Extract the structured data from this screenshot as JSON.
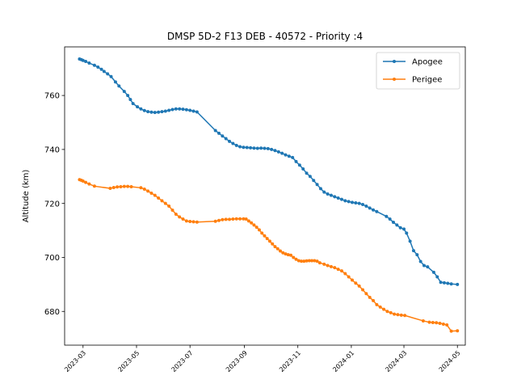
{
  "chart_data": {
    "type": "line",
    "title": "DMSP 5D-2 F13 DEB - 40572 - Priority :4",
    "xlabel": "",
    "ylabel": "Altitude (km)",
    "xlim": [
      "2023-02-08",
      "2024-05-10"
    ],
    "ylim": [
      667.5,
      778
    ],
    "x_ticks": [
      "2023-03",
      "2023-05",
      "2023-07",
      "2023-09",
      "2023-11",
      "2024-01",
      "2024-03",
      "2024-05"
    ],
    "x_tick_dates": [
      "2023-03-01",
      "2023-05-01",
      "2023-07-01",
      "2023-09-01",
      "2023-11-01",
      "2024-01-01",
      "2024-03-01",
      "2024-05-01"
    ],
    "y_ticks": [
      680,
      700,
      720,
      740,
      760
    ],
    "grid": false,
    "legend_position": "top-right",
    "series": [
      {
        "name": "Apogee",
        "color": "#1f77b4",
        "marker": "circle",
        "x": [
          "2023-02-25",
          "2023-02-27",
          "2023-03-01",
          "2023-03-04",
          "2023-03-08",
          "2023-03-14",
          "2023-03-18",
          "2023-03-22",
          "2023-03-25",
          "2023-03-29",
          "2023-04-02",
          "2023-04-07",
          "2023-04-11",
          "2023-04-17",
          "2023-04-21",
          "2023-04-24",
          "2023-04-27",
          "2023-05-02",
          "2023-05-06",
          "2023-05-10",
          "2023-05-14",
          "2023-05-18",
          "2023-05-22",
          "2023-05-26",
          "2023-05-30",
          "2023-06-03",
          "2023-06-07",
          "2023-06-11",
          "2023-06-15",
          "2023-06-19",
          "2023-06-23",
          "2023-06-27",
          "2023-07-01",
          "2023-07-05",
          "2023-07-09",
          "2023-07-30",
          "2023-08-03",
          "2023-08-07",
          "2023-08-11",
          "2023-08-15",
          "2023-08-19",
          "2023-08-23",
          "2023-08-27",
          "2023-08-31",
          "2023-09-04",
          "2023-09-08",
          "2023-09-12",
          "2023-09-16",
          "2023-09-20",
          "2023-09-24",
          "2023-09-28",
          "2023-10-02",
          "2023-10-06",
          "2023-10-10",
          "2023-10-14",
          "2023-10-18",
          "2023-10-22",
          "2023-10-26",
          "2023-10-30",
          "2023-11-03",
          "2023-11-07",
          "2023-11-11",
          "2023-11-15",
          "2023-11-19",
          "2023-11-23",
          "2023-11-27",
          "2023-12-01",
          "2023-12-05",
          "2023-12-09",
          "2023-12-13",
          "2023-12-17",
          "2023-12-21",
          "2023-12-25",
          "2023-12-29",
          "2024-01-02",
          "2024-01-06",
          "2024-01-10",
          "2024-01-14",
          "2024-01-18",
          "2024-01-22",
          "2024-01-26",
          "2024-01-30",
          "2024-02-10",
          "2024-02-14",
          "2024-02-18",
          "2024-02-22",
          "2024-02-26",
          "2024-03-01",
          "2024-03-04",
          "2024-03-08",
          "2024-03-12",
          "2024-03-16",
          "2024-03-20",
          "2024-03-24",
          "2024-03-28",
          "2024-04-04",
          "2024-04-08",
          "2024-04-12",
          "2024-04-16",
          "2024-04-20",
          "2024-04-24",
          "2024-05-01"
        ],
        "values": [
          773.5,
          773.3,
          773.0,
          772.6,
          772.0,
          771.2,
          770.5,
          769.7,
          768.9,
          768.0,
          767.0,
          765.0,
          763.5,
          761.5,
          760.0,
          758.5,
          757.0,
          755.8,
          755.0,
          754.4,
          754.0,
          753.8,
          753.7,
          753.8,
          754.0,
          754.2,
          754.5,
          754.8,
          755.0,
          755.0,
          754.9,
          754.7,
          754.5,
          754.2,
          753.9,
          747.0,
          746.0,
          745.0,
          744.0,
          743.0,
          742.2,
          741.5,
          741.0,
          740.8,
          740.7,
          740.6,
          740.5,
          740.4,
          740.5,
          740.4,
          740.3,
          740.0,
          739.6,
          739.1,
          738.6,
          738.0,
          737.5,
          737.0,
          735.5,
          734.2,
          732.8,
          731.2,
          730.0,
          728.5,
          727.0,
          725.5,
          724.2,
          723.5,
          723.0,
          722.5,
          722.0,
          721.5,
          721.0,
          720.7,
          720.4,
          720.2,
          720.0,
          719.6,
          719.0,
          718.3,
          717.6,
          717.0,
          715.2,
          714.2,
          713.0,
          712.0,
          711.0,
          710.5,
          709.0,
          706.0,
          702.5,
          701.0,
          698.5,
          697.0,
          696.5,
          694.5,
          692.8,
          690.8,
          690.6,
          690.4,
          690.2,
          690.0
        ]
      },
      {
        "name": "Perigee",
        "color": "#ff7f0e",
        "marker": "circle",
        "x": [
          "2023-02-25",
          "2023-02-27",
          "2023-03-01",
          "2023-03-04",
          "2023-03-08",
          "2023-03-14",
          "2023-04-01",
          "2023-04-05",
          "2023-04-09",
          "2023-04-13",
          "2023-04-17",
          "2023-04-21",
          "2023-04-25",
          "2023-05-06",
          "2023-05-10",
          "2023-05-14",
          "2023-05-18",
          "2023-05-22",
          "2023-05-26",
          "2023-05-30",
          "2023-06-03",
          "2023-06-07",
          "2023-06-11",
          "2023-06-15",
          "2023-06-19",
          "2023-06-23",
          "2023-06-27",
          "2023-07-01",
          "2023-07-05",
          "2023-07-09",
          "2023-07-30",
          "2023-08-03",
          "2023-08-07",
          "2023-08-11",
          "2023-08-15",
          "2023-08-19",
          "2023-08-23",
          "2023-08-27",
          "2023-08-31",
          "2023-09-03",
          "2023-09-06",
          "2023-09-09",
          "2023-09-12",
          "2023-09-15",
          "2023-09-18",
          "2023-09-21",
          "2023-09-24",
          "2023-09-27",
          "2023-09-30",
          "2023-10-03",
          "2023-10-06",
          "2023-10-09",
          "2023-10-12",
          "2023-10-15",
          "2023-10-18",
          "2023-10-21",
          "2023-10-24",
          "2023-10-27",
          "2023-10-30",
          "2023-11-02",
          "2023-11-05",
          "2023-11-08",
          "2023-11-11",
          "2023-11-14",
          "2023-11-17",
          "2023-11-20",
          "2023-11-23",
          "2023-11-26",
          "2023-12-01",
          "2023-12-05",
          "2023-12-09",
          "2023-12-13",
          "2023-12-17",
          "2023-12-21",
          "2023-12-25",
          "2023-12-29",
          "2024-01-02",
          "2024-01-06",
          "2024-01-10",
          "2024-01-14",
          "2024-01-18",
          "2024-01-22",
          "2024-01-26",
          "2024-01-30",
          "2024-02-03",
          "2024-02-07",
          "2024-02-11",
          "2024-02-15",
          "2024-02-19",
          "2024-02-23",
          "2024-02-27",
          "2024-03-02",
          "2024-03-23",
          "2024-03-30",
          "2024-04-03",
          "2024-04-07",
          "2024-04-11",
          "2024-04-15",
          "2024-04-19",
          "2024-04-24",
          "2024-05-01"
        ],
        "values": [
          728.8,
          728.6,
          728.3,
          727.8,
          727.2,
          726.4,
          725.6,
          725.9,
          726.1,
          726.2,
          726.3,
          726.3,
          726.2,
          725.8,
          725.3,
          724.6,
          723.8,
          723.0,
          722.0,
          721.0,
          720.0,
          719.0,
          717.5,
          716.0,
          715.0,
          714.2,
          713.5,
          713.3,
          713.2,
          713.1,
          713.4,
          713.7,
          714.0,
          714.1,
          714.1,
          714.2,
          714.3,
          714.3,
          714.3,
          714.2,
          713.5,
          712.8,
          712.0,
          711.2,
          710.2,
          709.0,
          708.0,
          707.0,
          706.0,
          705.0,
          704.0,
          703.2,
          702.4,
          701.7,
          701.3,
          701.0,
          700.8,
          700.0,
          699.3,
          698.8,
          698.6,
          698.6,
          698.7,
          698.8,
          698.8,
          698.8,
          698.6,
          698.0,
          697.5,
          697.0,
          696.6,
          696.2,
          695.6,
          695.0,
          694.0,
          692.8,
          691.6,
          690.5,
          689.4,
          688.0,
          686.6,
          685.2,
          684.0,
          682.5,
          681.6,
          680.8,
          680.0,
          679.5,
          679.0,
          678.8,
          678.6,
          678.5,
          676.5,
          676.0,
          675.9,
          675.8,
          675.6,
          675.3,
          675.0,
          672.7,
          672.8
        ]
      }
    ]
  }
}
